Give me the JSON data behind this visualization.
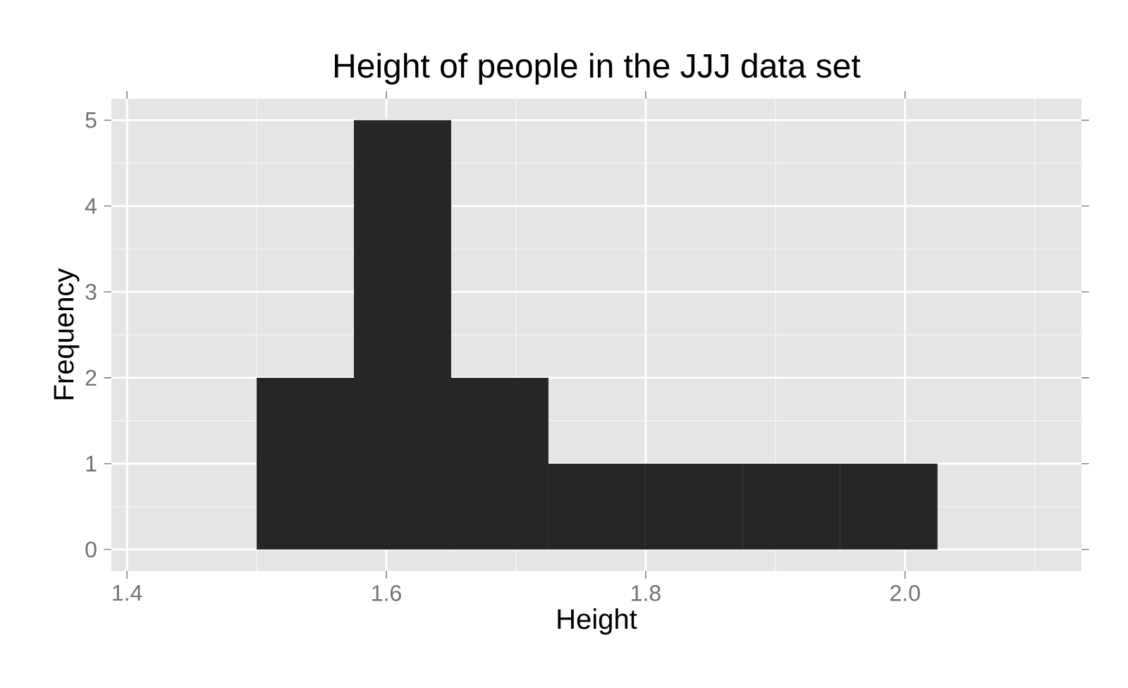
{
  "chart_data": {
    "type": "histogram",
    "title": "Height of people in the JJJ data set",
    "xlabel": "Height",
    "ylabel": "Frequency",
    "bins": [
      1.5,
      1.575,
      1.65,
      1.725,
      1.8,
      1.875,
      1.95,
      2.025
    ],
    "values": [
      2,
      5,
      2,
      1,
      1,
      1,
      1
    ],
    "color": "#262626",
    "xlim": [
      1.388,
      2.136
    ],
    "ylim": [
      -0.25,
      5.25
    ],
    "xticks": [
      {
        "value": 1.4,
        "label": "1.4"
      },
      {
        "value": 1.6,
        "label": "1.6"
      },
      {
        "value": 1.8,
        "label": "1.8"
      },
      {
        "value": 2.0,
        "label": "2.0"
      }
    ],
    "yticks": [
      0,
      1,
      2,
      3,
      4,
      5
    ],
    "grid": true
  }
}
